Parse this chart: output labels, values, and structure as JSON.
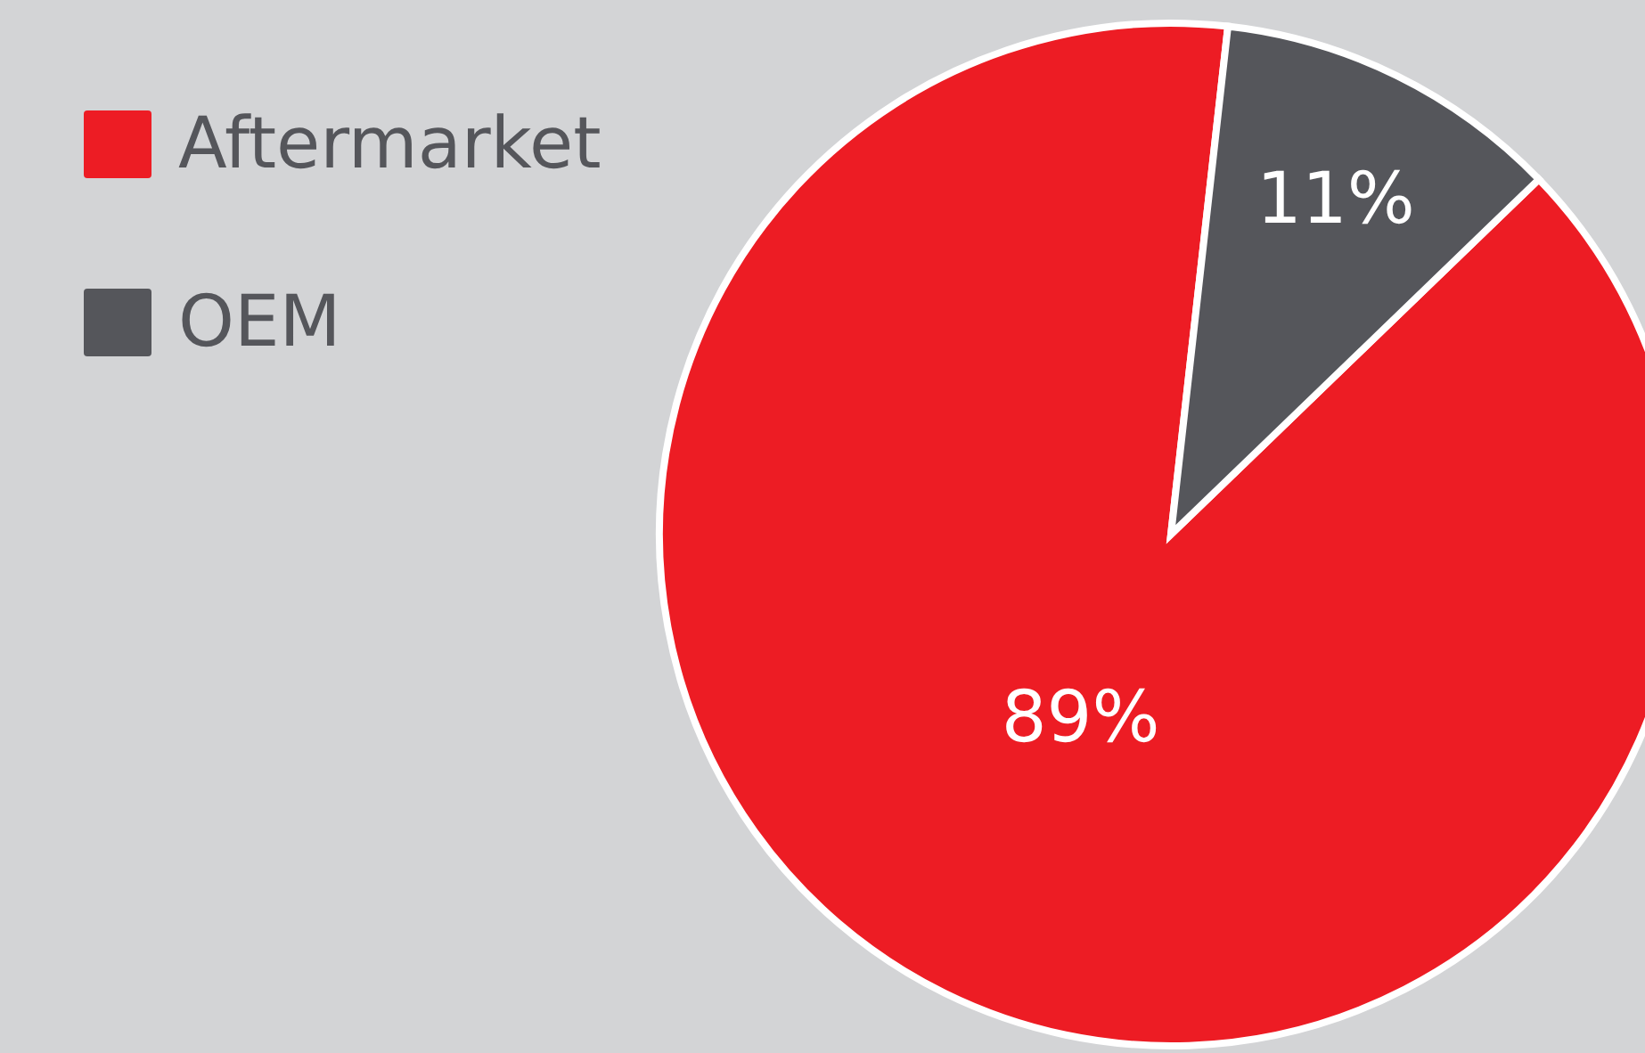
{
  "chart_data": {
    "type": "pie",
    "categories": [
      "Aftermarket",
      "OEM"
    ],
    "values": [
      89,
      11
    ],
    "colors": [
      "#ed1c24",
      "#55565b"
    ],
    "value_labels": [
      "89%",
      "11%"
    ],
    "legend": "top left"
  }
}
